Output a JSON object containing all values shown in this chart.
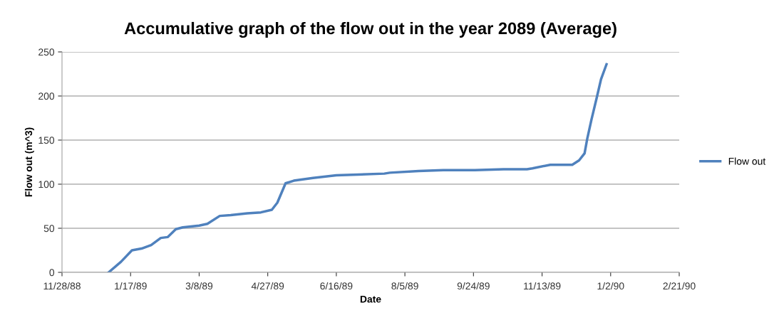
{
  "chart_data": {
    "type": "line",
    "title": "Accumulative graph of the flow out in the year 2089 (Average)",
    "xlabel": "Date",
    "ylabel": "Flow out (m^3)",
    "x": [
      "1989-01-01",
      "1989-01-10",
      "1989-01-18",
      "1989-01-25",
      "1989-02-01",
      "1989-02-08",
      "1989-02-13",
      "1989-02-19",
      "1989-02-24",
      "1989-03-08",
      "1989-03-14",
      "1989-03-23",
      "1989-03-31",
      "1989-04-12",
      "1989-04-22",
      "1989-04-30",
      "1989-05-04",
      "1989-05-10",
      "1989-05-16",
      "1989-05-30",
      "1989-06-16",
      "1989-07-21",
      "1989-07-25",
      "1989-08-15",
      "1989-09-02",
      "1989-09-25",
      "1989-10-16",
      "1989-11-02",
      "1989-11-06",
      "1989-11-19",
      "1989-12-05",
      "1989-12-10",
      "1989-12-14",
      "1989-12-16",
      "1989-12-19",
      "1989-12-23",
      "1989-12-26",
      "1989-12-30"
    ],
    "series": [
      {
        "name": "Flow out",
        "color": "#4f81bd",
        "values": [
          0,
          12,
          25,
          27,
          31,
          39,
          40,
          49,
          51,
          53,
          55,
          64,
          65,
          67,
          68,
          71,
          79,
          101,
          104,
          107,
          110,
          112,
          113,
          115,
          116,
          116,
          117,
          117,
          118,
          122,
          122,
          127,
          135,
          152,
          173,
          199,
          219,
          236
        ]
      }
    ],
    "xlim": [
      "1988-11-28",
      "1990-02-21"
    ],
    "xticks": [
      {
        "value": "1988-11-28",
        "label": "11/28/88"
      },
      {
        "value": "1989-01-17",
        "label": "1/17/89"
      },
      {
        "value": "1989-03-08",
        "label": "3/8/89"
      },
      {
        "value": "1989-04-27",
        "label": "4/27/89"
      },
      {
        "value": "1989-06-16",
        "label": "6/16/89"
      },
      {
        "value": "1989-08-05",
        "label": "8/5/89"
      },
      {
        "value": "1989-09-24",
        "label": "9/24/89"
      },
      {
        "value": "1989-11-13",
        "label": "11/13/89"
      },
      {
        "value": "1990-01-02",
        "label": "1/2/90"
      },
      {
        "value": "1990-02-21",
        "label": "2/21/90"
      }
    ],
    "ylim": [
      0,
      250
    ],
    "yticks": [
      0,
      50,
      100,
      150,
      200,
      250
    ],
    "grid": "y",
    "legend": "right",
    "marker": "none",
    "line_style": "solid"
  }
}
